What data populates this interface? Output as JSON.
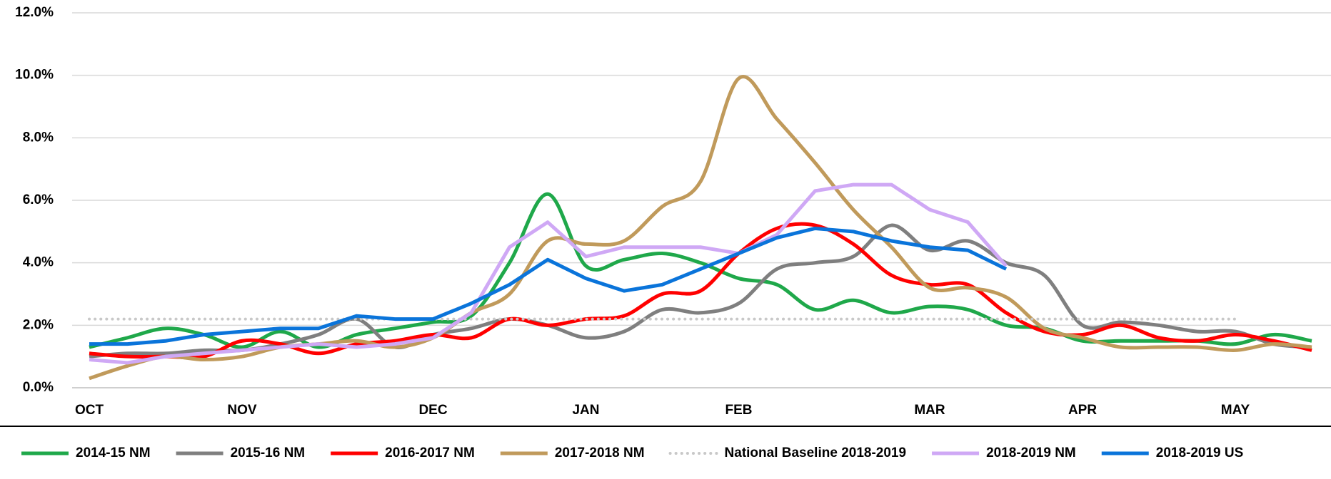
{
  "chart_data": {
    "type": "line",
    "categories": [
      "OCT",
      null,
      null,
      null,
      "NOV",
      null,
      null,
      null,
      null,
      "DEC",
      null,
      null,
      null,
      "JAN",
      null,
      null,
      null,
      "FEB",
      null,
      null,
      null,
      null,
      "MAR",
      null,
      null,
      null,
      "APR",
      null,
      null,
      null,
      "MAY",
      null,
      null
    ],
    "ylim": [
      0,
      12
    ],
    "yticks": [
      {
        "value": 0,
        "label": "0.0%"
      },
      {
        "value": 2,
        "label": "2.0%"
      },
      {
        "value": 4,
        "label": "4.0%"
      },
      {
        "value": 6,
        "label": "6.0%"
      },
      {
        "value": 8,
        "label": "8.0%"
      },
      {
        "value": 10,
        "label": "10.0%"
      },
      {
        "value": 12,
        "label": "12.0%"
      }
    ],
    "grid": true,
    "legend": "bottom",
    "series": [
      {
        "name": "2014-15 NM",
        "color": "#1fa84a",
        "smooth": true,
        "values": [
          1.3,
          1.6,
          1.9,
          1.7,
          1.3,
          1.8,
          1.3,
          1.7,
          1.9,
          2.1,
          2.3,
          4.0,
          6.2,
          3.9,
          4.1,
          4.3,
          4.0,
          3.5,
          3.3,
          2.5,
          2.8,
          2.4,
          2.6,
          2.5,
          2.0,
          1.9,
          1.5,
          1.5,
          1.5,
          1.5,
          1.4,
          1.7,
          1.5
        ]
      },
      {
        "name": "2015-16 NM",
        "color": "#7f7f7f",
        "smooth": true,
        "values": [
          1.0,
          1.1,
          1.1,
          1.2,
          1.2,
          1.4,
          1.7,
          2.2,
          1.3,
          1.7,
          1.9,
          2.2,
          2.0,
          1.6,
          1.8,
          2.5,
          2.4,
          2.7,
          3.8,
          4.0,
          4.2,
          5.2,
          4.4,
          4.7,
          4.0,
          3.6,
          2.0,
          2.1,
          2.0,
          1.8,
          1.8,
          1.4,
          1.3
        ]
      },
      {
        "name": "2016-2017 NM",
        "color": "#ff0000",
        "smooth": true,
        "values": [
          1.1,
          1.0,
          1.0,
          1.0,
          1.5,
          1.4,
          1.1,
          1.4,
          1.5,
          1.7,
          1.6,
          2.2,
          2.0,
          2.2,
          2.3,
          3.0,
          3.1,
          4.3,
          5.1,
          5.2,
          4.6,
          3.6,
          3.3,
          3.3,
          2.4,
          1.8,
          1.7,
          2.0,
          1.6,
          1.5,
          1.7,
          1.5,
          1.2
        ]
      },
      {
        "name": "2017-2018 NM",
        "color": "#c09a5b",
        "smooth": true,
        "values": [
          0.3,
          0.7,
          1.0,
          0.9,
          1.0,
          1.3,
          1.4,
          1.5,
          1.3,
          1.6,
          2.4,
          3.0,
          4.7,
          4.6,
          4.7,
          5.8,
          6.6,
          9.9,
          8.6,
          7.2,
          5.7,
          4.5,
          3.2,
          3.2,
          2.9,
          1.9,
          1.6,
          1.3,
          1.3,
          1.3,
          1.2,
          1.4,
          1.3
        ]
      },
      {
        "name": "National Baseline 2018-2019",
        "color": "#c8c8c8",
        "dotted": true,
        "values": [
          2.2,
          2.2,
          2.2,
          2.2,
          2.2,
          2.2,
          2.2,
          2.2,
          2.2,
          2.2,
          2.2,
          2.2,
          2.2,
          2.2,
          2.2,
          2.2,
          2.2,
          2.2,
          2.2,
          2.2,
          2.2,
          2.2,
          2.2,
          2.2,
          2.2,
          2.2,
          2.2,
          2.2,
          2.2,
          2.2,
          2.2,
          null,
          null
        ]
      },
      {
        "name": "2018-2019 NM",
        "color": "#cfa8f5",
        "values": [
          0.9,
          0.8,
          1.0,
          1.1,
          1.2,
          1.3,
          1.4,
          1.3,
          1.4,
          1.6,
          2.4,
          4.5,
          5.3,
          4.2,
          4.5,
          4.5,
          4.5,
          4.3,
          4.9,
          6.3,
          6.5,
          6.5,
          5.7,
          5.3,
          3.9,
          null,
          null,
          null,
          null,
          null,
          null,
          null,
          null
        ]
      },
      {
        "name": "2018-2019 US",
        "color": "#0a74da",
        "values": [
          1.4,
          1.4,
          1.5,
          1.7,
          1.8,
          1.9,
          1.9,
          2.3,
          2.2,
          2.2,
          2.7,
          3.3,
          4.1,
          3.5,
          3.1,
          3.3,
          3.8,
          4.3,
          4.8,
          5.1,
          5.0,
          4.7,
          4.5,
          4.4,
          3.8,
          null,
          null,
          null,
          null,
          null,
          null,
          null,
          null
        ]
      }
    ]
  }
}
